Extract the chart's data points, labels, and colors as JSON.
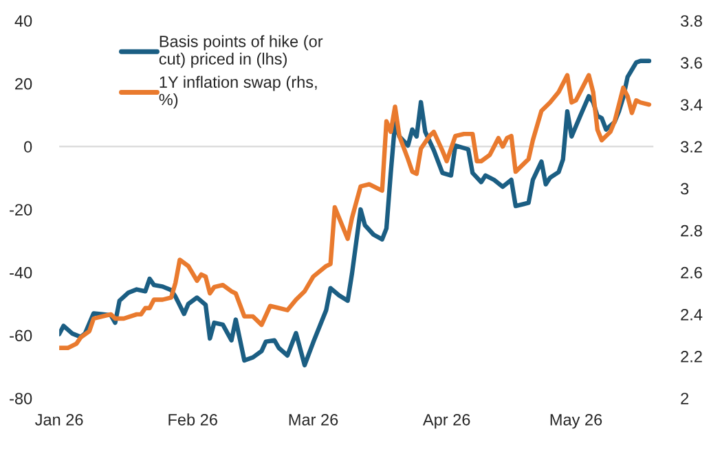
{
  "chart_data": {
    "type": "line",
    "xlim": [
      "2026-01-01",
      "2026-05-19"
    ],
    "xticks": [
      {
        "value": "2026-01-01",
        "label": "Jan 26"
      },
      {
        "value": "2026-02-01",
        "label": "Feb 26"
      },
      {
        "value": "2026-03-01",
        "label": "Mar 26"
      },
      {
        "value": "2026-04-01",
        "label": "Apr 26"
      },
      {
        "value": "2026-05-01",
        "label": "May 26"
      }
    ],
    "ylim": [
      -80,
      40
    ],
    "yticks": [
      -80,
      -60,
      -40,
      -20,
      0,
      20,
      40
    ],
    "y2lim": [
      2,
      3.8
    ],
    "y2ticks": [
      {
        "value": 2,
        "label": "2"
      },
      {
        "value": 2.2,
        "label": "2.2"
      },
      {
        "value": 2.4,
        "label": "2.4"
      },
      {
        "value": 2.6,
        "label": "2.6"
      },
      {
        "value": 2.8,
        "label": "2.8"
      },
      {
        "value": 3,
        "label": "3"
      },
      {
        "value": 3.2,
        "label": "3.2"
      },
      {
        "value": 3.4,
        "label": "3.4"
      },
      {
        "value": 3.6,
        "label": "3.6"
      },
      {
        "value": 3.8,
        "label": "3.8"
      }
    ],
    "ref_lines": [
      {
        "axis": "y",
        "value": 0,
        "color": "#d9d9d9"
      }
    ],
    "grid": false,
    "legend": "top left",
    "series": [
      {
        "name": "Basis points of hike (or cut) priced in (lhs)",
        "color": "#1b5e83",
        "x": [
          "2026-01-01",
          "2026-01-02",
          "2026-01-04",
          "2026-01-06",
          "2026-01-07",
          "2026-01-09",
          "2026-01-11",
          "2026-01-13",
          "2026-01-14",
          "2026-01-15",
          "2026-01-17",
          "2026-01-19",
          "2026-01-21",
          "2026-01-22",
          "2026-01-23",
          "2026-01-25",
          "2026-01-27",
          "2026-01-28",
          "2026-01-30",
          "2026-01-31",
          "2026-02-02",
          "2026-02-04",
          "2026-02-05",
          "2026-02-06",
          "2026-02-08",
          "2026-02-10",
          "2026-02-11",
          "2026-02-13",
          "2026-02-15",
          "2026-02-17",
          "2026-02-18",
          "2026-02-20",
          "2026-02-21",
          "2026-02-23",
          "2026-02-25",
          "2026-02-27",
          "2026-03-01",
          "2026-03-04",
          "2026-03-05",
          "2026-03-07",
          "2026-03-09",
          "2026-03-10",
          "2026-03-12",
          "2026-03-13",
          "2026-03-15",
          "2026-03-17",
          "2026-03-18",
          "2026-03-19",
          "2026-03-20",
          "2026-03-21",
          "2026-03-23",
          "2026-03-24",
          "2026-03-25",
          "2026-03-26",
          "2026-03-27",
          "2026-03-29",
          "2026-03-31",
          "2026-04-02",
          "2026-04-03",
          "2026-04-06",
          "2026-04-07",
          "2026-04-09",
          "2026-04-10",
          "2026-04-12",
          "2026-04-14",
          "2026-04-16",
          "2026-04-17",
          "2026-04-20",
          "2026-04-21",
          "2026-04-23",
          "2026-04-24",
          "2026-04-25",
          "2026-04-27",
          "2026-04-28",
          "2026-04-29",
          "2026-04-30",
          "2026-05-02",
          "2026-05-04",
          "2026-05-05",
          "2026-05-06",
          "2026-05-07",
          "2026-05-08",
          "2026-05-10",
          "2026-05-11",
          "2026-05-12",
          "2026-05-13",
          "2026-05-15",
          "2026-05-16",
          "2026-05-18"
        ],
        "values": [
          -59.6,
          -57,
          -59.4,
          -60.5,
          -59.4,
          -53,
          -53.3,
          -53.6,
          -56,
          -49,
          -46.5,
          -45.4,
          -46,
          -42,
          -44,
          -44.5,
          -45.6,
          -47.7,
          -53.2,
          -50,
          -48,
          -50.3,
          -61,
          -56,
          -56.6,
          -61.6,
          -55,
          -68,
          -67,
          -65,
          -62,
          -61.6,
          -64,
          -66.4,
          -59.3,
          -69.5,
          -62.2,
          -52,
          -45,
          -47.3,
          -49,
          -40.4,
          -20,
          -25,
          -28,
          -29.5,
          -26,
          -8.4,
          7.6,
          3.2,
          0.3,
          5.4,
          3.2,
          14.1,
          4.7,
          -1.2,
          -8.4,
          -9.2,
          0.3,
          -0.9,
          -8.4,
          -11.3,
          -9.2,
          -10.6,
          -12.8,
          -10.6,
          -18.9,
          -17.9,
          -10.6,
          -4.8,
          -12,
          -9.9,
          -8.1,
          -4.1,
          11.2,
          3.2,
          9.7,
          16,
          14.1,
          9.7,
          9,
          5.4,
          7.8,
          11.2,
          15.6,
          22.1,
          26.7,
          27.2,
          27.2
        ]
      },
      {
        "name": "1Y inflation swap (rhs, %)",
        "color": "#e97a2e",
        "axis": "y2",
        "x": [
          "2026-01-01",
          "2026-01-03",
          "2026-01-05",
          "2026-01-06",
          "2026-01-08",
          "2026-01-09",
          "2026-01-11",
          "2026-01-13",
          "2026-01-14",
          "2026-01-16",
          "2026-01-19",
          "2026-01-20",
          "2026-01-21",
          "2026-01-22",
          "2026-01-23",
          "2026-01-25",
          "2026-01-27",
          "2026-01-28",
          "2026-01-29",
          "2026-01-31",
          "2026-02-02",
          "2026-02-03",
          "2026-02-04",
          "2026-02-05",
          "2026-02-06",
          "2026-02-08",
          "2026-02-10",
          "2026-02-11",
          "2026-02-13",
          "2026-02-15",
          "2026-02-17",
          "2026-02-19",
          "2026-02-21",
          "2026-02-23",
          "2026-02-25",
          "2026-02-27",
          "2026-03-01",
          "2026-03-04",
          "2026-03-05",
          "2026-03-06",
          "2026-03-08",
          "2026-03-09",
          "2026-03-10",
          "2026-03-12",
          "2026-03-14",
          "2026-03-16",
          "2026-03-17",
          "2026-03-18",
          "2026-03-19",
          "2026-03-20",
          "2026-03-21",
          "2026-03-23",
          "2026-03-24",
          "2026-03-25",
          "2026-03-26",
          "2026-03-28",
          "2026-03-29",
          "2026-03-31",
          "2026-04-01",
          "2026-04-03",
          "2026-04-05",
          "2026-04-07",
          "2026-04-08",
          "2026-04-09",
          "2026-04-11",
          "2026-04-13",
          "2026-04-14",
          "2026-04-15",
          "2026-04-16",
          "2026-04-17",
          "2026-04-20",
          "2026-04-21",
          "2026-04-23",
          "2026-04-25",
          "2026-04-27",
          "2026-04-29",
          "2026-04-30",
          "2026-05-01",
          "2026-05-04",
          "2026-05-05",
          "2026-05-06",
          "2026-05-07",
          "2026-05-09",
          "2026-05-10",
          "2026-05-12",
          "2026-05-13",
          "2026-05-14",
          "2026-05-15",
          "2026-05-16",
          "2026-05-18"
        ],
        "values": [
          2.24,
          2.24,
          2.26,
          2.29,
          2.32,
          2.38,
          2.39,
          2.4,
          2.38,
          2.38,
          2.4,
          2.4,
          2.43,
          2.43,
          2.47,
          2.47,
          2.48,
          2.55,
          2.66,
          2.63,
          2.56,
          2.59,
          2.58,
          2.5,
          2.53,
          2.54,
          2.51,
          2.5,
          2.39,
          2.39,
          2.35,
          2.44,
          2.43,
          2.42,
          2.47,
          2.51,
          2.58,
          2.63,
          2.64,
          2.91,
          2.81,
          2.76,
          2.86,
          3.01,
          3.02,
          3.0,
          2.99,
          3.32,
          3.27,
          3.39,
          3.25,
          3.14,
          3.08,
          3.07,
          3.19,
          3.25,
          3.27,
          3.18,
          3.13,
          3.25,
          3.26,
          3.26,
          3.13,
          3.13,
          3.16,
          3.24,
          3.2,
          3.24,
          3.25,
          3.08,
          3.14,
          3.23,
          3.37,
          3.41,
          3.46,
          3.54,
          3.41,
          3.42,
          3.54,
          3.46,
          3.28,
          3.23,
          3.27,
          3.32,
          3.48,
          3.44,
          3.36,
          3.42,
          3.41,
          3.4
        ]
      }
    ]
  }
}
